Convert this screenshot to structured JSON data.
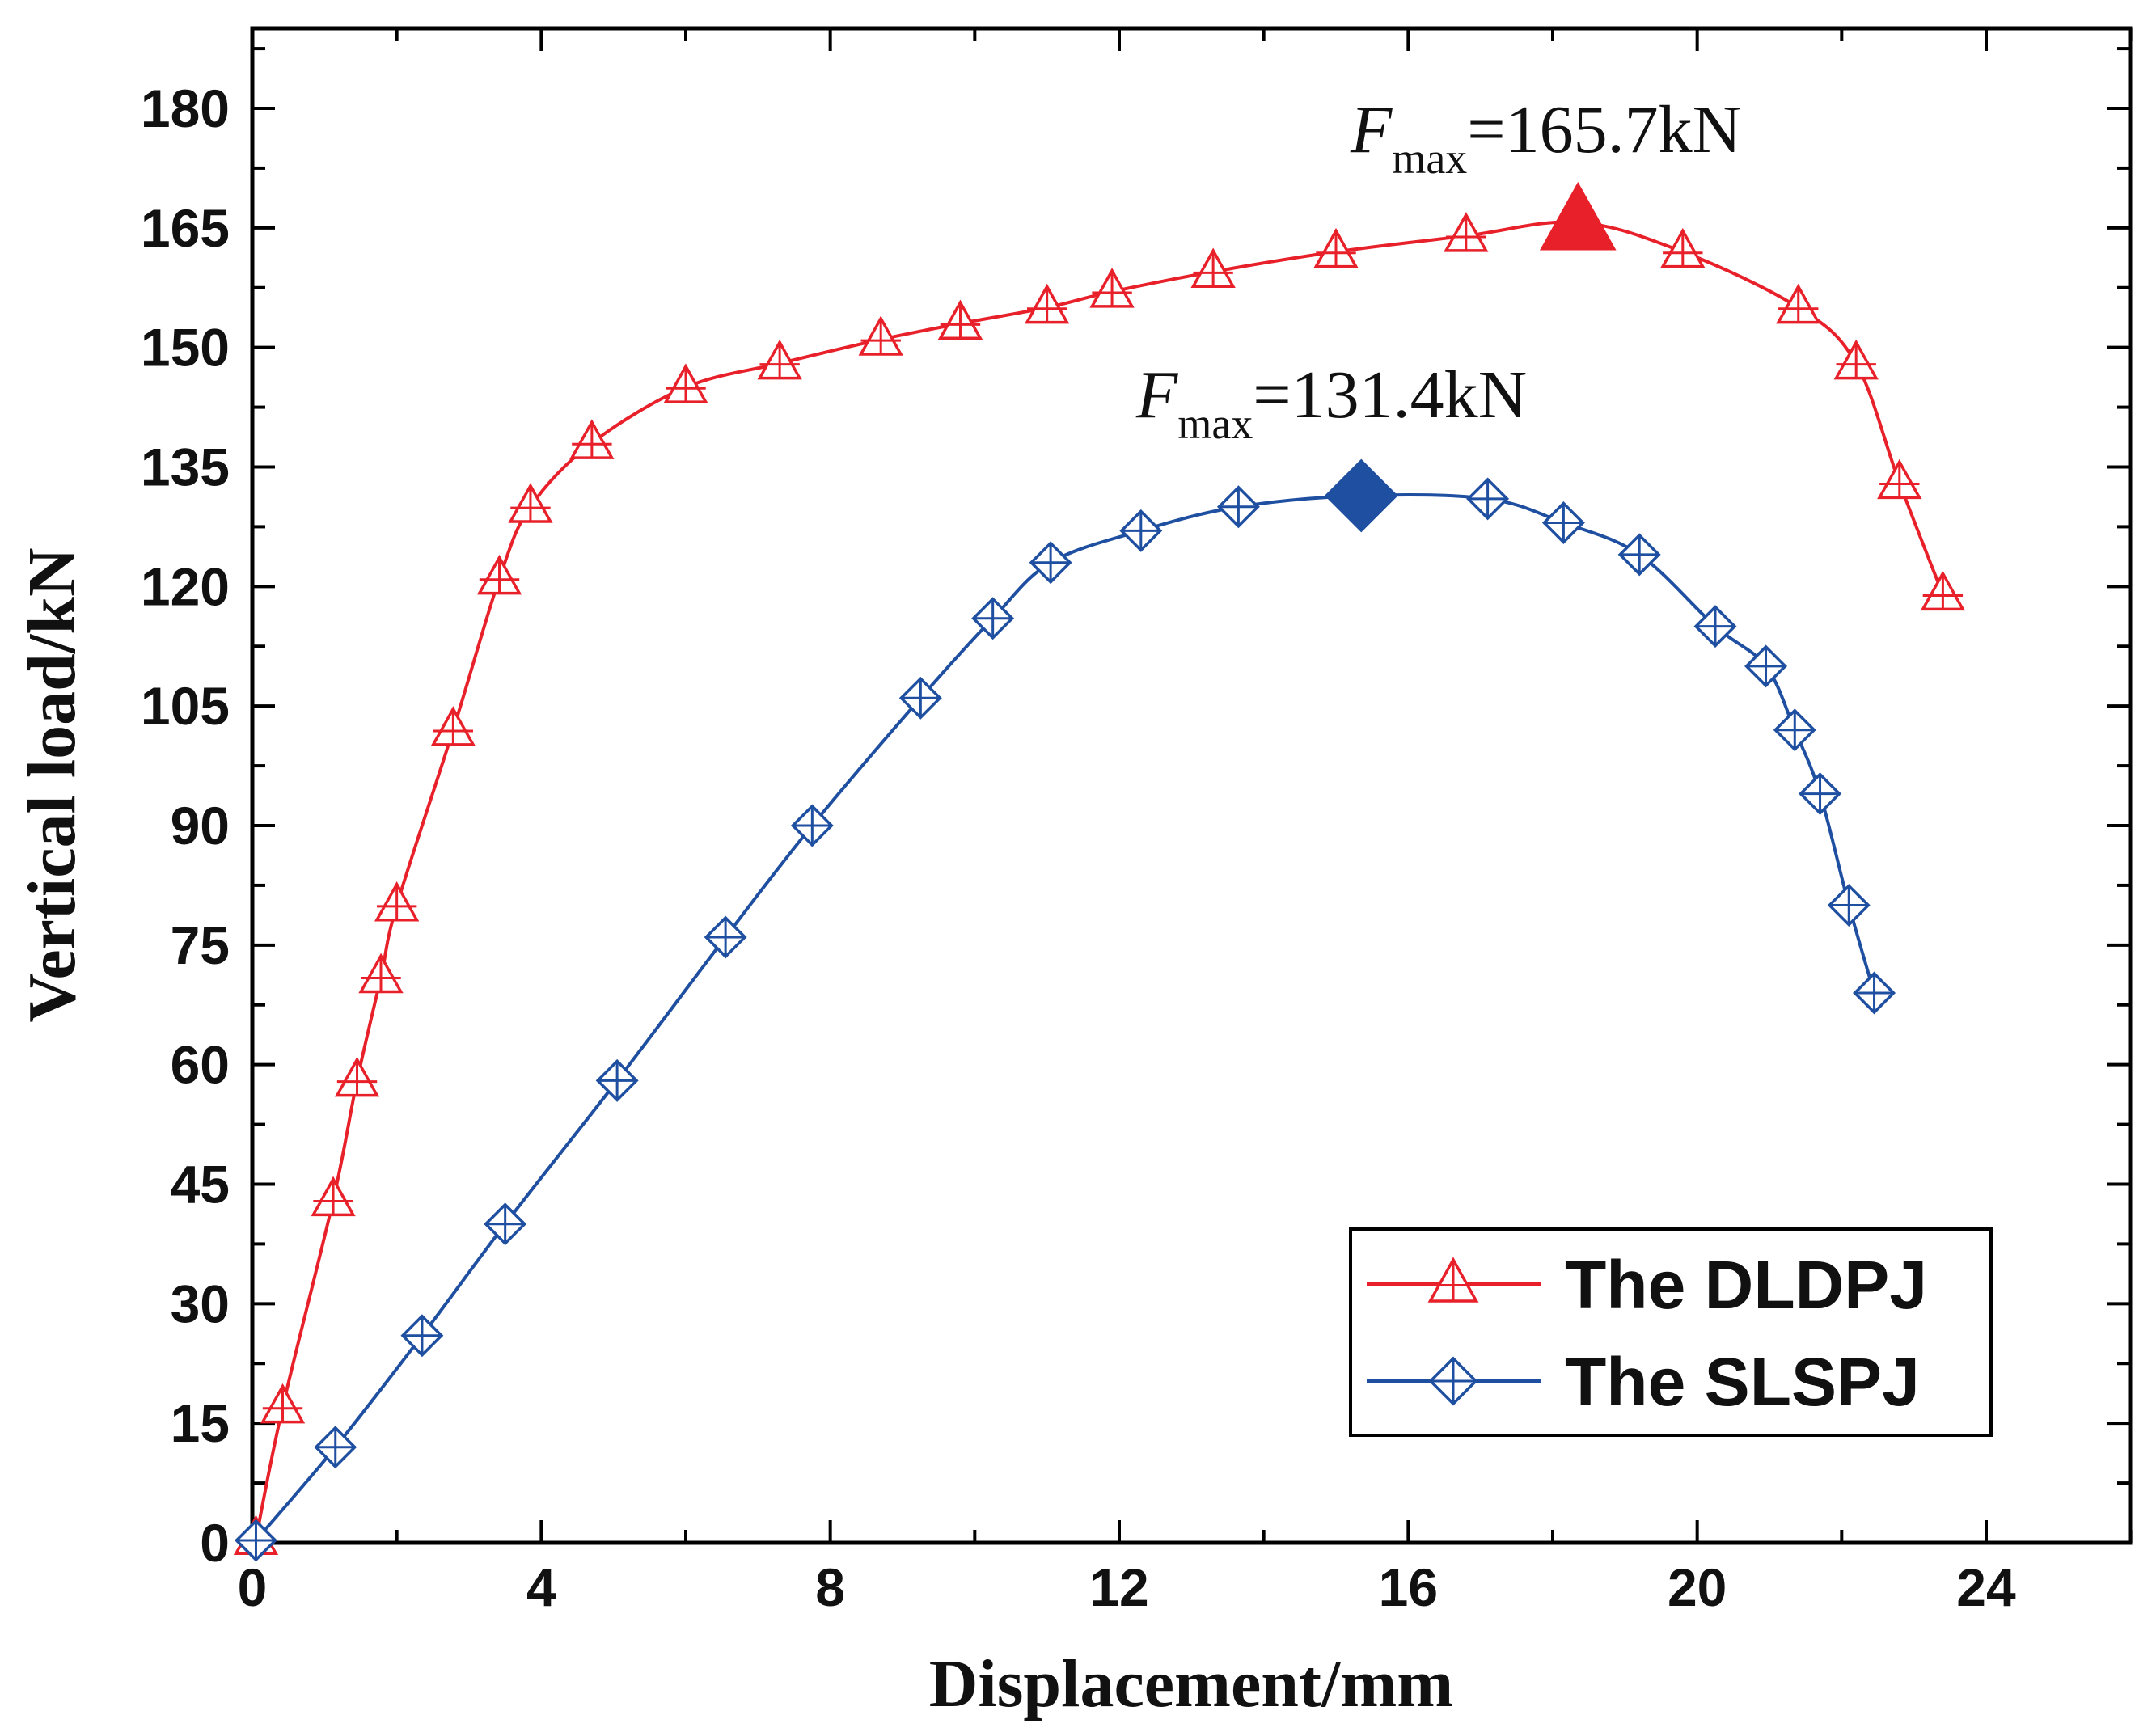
{
  "chart_data": {
    "type": "line",
    "title": "",
    "xlabel": "Displacement/mm",
    "ylabel": "Vertical load/kN",
    "xlim": [
      0,
      26
    ],
    "ylim": [
      0,
      190
    ],
    "xticks": [
      0,
      4,
      8,
      12,
      16,
      20,
      24
    ],
    "yticks": [
      0,
      15,
      30,
      45,
      60,
      75,
      90,
      105,
      120,
      135,
      150,
      165,
      180
    ],
    "grid": false,
    "legend_position": "bottom-right",
    "series": [
      {
        "name": "The DLDPJ",
        "color": "#e8202a",
        "marker": "open-triangle",
        "x": [
          0.05,
          0.42,
          1.12,
          1.45,
          1.78,
          2.0,
          2.78,
          3.42,
          3.85,
          4.7,
          6.0,
          7.3,
          8.7,
          9.8,
          11.0,
          11.9,
          13.3,
          15.0,
          16.8,
          19.8,
          21.4,
          22.2,
          22.8,
          23.4
        ],
        "y": [
          0.5,
          17,
          43,
          58,
          71,
          80,
          102,
          121,
          130,
          138,
          145,
          148,
          151,
          153,
          155,
          157,
          159.5,
          162,
          164,
          162,
          155,
          148,
          133,
          119
        ]
      },
      {
        "name": "The SLSPJ",
        "color": "#1f4fa0",
        "marker": "open-diamond-cross",
        "x": [
          0.05,
          1.15,
          2.35,
          3.5,
          5.05,
          6.55,
          7.75,
          9.25,
          10.25,
          11.05,
          12.3,
          13.65,
          17.1,
          18.15,
          19.2,
          20.25,
          20.95,
          21.35,
          21.7,
          22.1,
          22.45
        ],
        "y": [
          0.3,
          12,
          26,
          40,
          58,
          76,
          90,
          106,
          116,
          123,
          127,
          130,
          131,
          128,
          124,
          115,
          110,
          102,
          94,
          80,
          69
        ]
      }
    ],
    "peaks": [
      {
        "series": "The DLDPJ",
        "x": 18.35,
        "y": 165.7,
        "marker": "filled-triangle",
        "color": "#e8202a",
        "label_prefix": "F",
        "label_sub": "max",
        "label_value": "=165.7kN"
      },
      {
        "series": "The SLSPJ",
        "x": 15.35,
        "y": 131.4,
        "marker": "filled-diamond",
        "color": "#1f4fa0",
        "label_prefix": "F",
        "label_sub": "max",
        "label_value": "=131.4kN"
      }
    ]
  }
}
